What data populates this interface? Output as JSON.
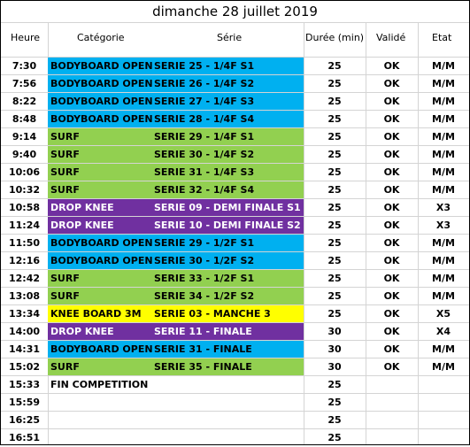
{
  "title": "dimanche 28 juillet 2019",
  "headers": {
    "heure": "Heure",
    "categorie": "Catégorie",
    "serie": "Série",
    "duree": "Durée (min)",
    "valide": "Validé",
    "etat": "Etat"
  },
  "colors": {
    "blue": "#00b0f0",
    "green": "#92d050",
    "purple": "#7030a0",
    "yellow": "#ffff00"
  },
  "rows": [
    {
      "heure": "7:30",
      "categorie": "BODYBOARD OPEN",
      "serie": "SERIE 25 - 1/4F S1",
      "duree": "25",
      "valide": "OK",
      "etat": "M/M",
      "band": "blue"
    },
    {
      "heure": "7:56",
      "categorie": "BODYBOARD OPEN",
      "serie": "SERIE 26 - 1/4F S2",
      "duree": "25",
      "valide": "OK",
      "etat": "M/M",
      "band": "blue"
    },
    {
      "heure": "8:22",
      "categorie": "BODYBOARD OPEN",
      "serie": "SERIE 27 - 1/4F S3",
      "duree": "25",
      "valide": "OK",
      "etat": "M/M",
      "band": "blue"
    },
    {
      "heure": "8:48",
      "categorie": "BODYBOARD OPEN",
      "serie": "SERIE 28 - 1/4F S4",
      "duree": "25",
      "valide": "OK",
      "etat": "M/M",
      "band": "blue"
    },
    {
      "heure": "9:14",
      "categorie": "SURF",
      "serie": "SERIE 29 - 1/4F S1",
      "duree": "25",
      "valide": "OK",
      "etat": "M/M",
      "band": "green"
    },
    {
      "heure": "9:40",
      "categorie": "SURF",
      "serie": "SERIE 30 - 1/4F S2",
      "duree": "25",
      "valide": "OK",
      "etat": "M/M",
      "band": "green"
    },
    {
      "heure": "10:06",
      "categorie": "SURF",
      "serie": "SERIE 31 - 1/4F S3",
      "duree": "25",
      "valide": "OK",
      "etat": "M/M",
      "band": "green"
    },
    {
      "heure": "10:32",
      "categorie": "SURF",
      "serie": "SERIE 32 - 1/4F S4",
      "duree": "25",
      "valide": "OK",
      "etat": "M/M",
      "band": "green"
    },
    {
      "heure": "10:58",
      "categorie": "DROP KNEE",
      "serie": "SERIE 09 - DEMI FINALE S1",
      "duree": "25",
      "valide": "OK",
      "etat": "X3",
      "band": "purple"
    },
    {
      "heure": "11:24",
      "categorie": "DROP KNEE",
      "serie": "SERIE 10 - DEMI FINALE S2",
      "duree": "25",
      "valide": "OK",
      "etat": "X3",
      "band": "purple"
    },
    {
      "heure": "11:50",
      "categorie": "BODYBOARD OPEN",
      "serie": "SERIE 29 - 1/2F S1",
      "duree": "25",
      "valide": "OK",
      "etat": "M/M",
      "band": "blue"
    },
    {
      "heure": "12:16",
      "categorie": "BODYBOARD OPEN",
      "serie": "SERIE 30 - 1/2F S2",
      "duree": "25",
      "valide": "OK",
      "etat": "M/M",
      "band": "blue"
    },
    {
      "heure": "12:42",
      "categorie": "SURF",
      "serie": "SERIE 33 - 1/2F S1",
      "duree": "25",
      "valide": "OK",
      "etat": "M/M",
      "band": "green"
    },
    {
      "heure": "13:08",
      "categorie": "SURF",
      "serie": "SERIE 34 - 1/2F S2",
      "duree": "25",
      "valide": "OK",
      "etat": "M/M",
      "band": "green"
    },
    {
      "heure": "13:34",
      "categorie": "KNEE BOARD 3M",
      "serie": "SERIE 03 - MANCHE 3",
      "duree": "25",
      "valide": "OK",
      "etat": "X5",
      "band": "yellow"
    },
    {
      "heure": "14:00",
      "categorie": "DROP KNEE",
      "serie": "SERIE 11 - FINALE",
      "duree": "30",
      "valide": "OK",
      "etat": "X4",
      "band": "purple"
    },
    {
      "heure": "14:31",
      "categorie": "BODYBOARD OPEN",
      "serie": "SERIE 31 - FINALE",
      "duree": "30",
      "valide": "OK",
      "etat": "M/M",
      "band": "blue"
    },
    {
      "heure": "15:02",
      "categorie": "SURF",
      "serie": "SERIE 35 - FINALE",
      "duree": "30",
      "valide": "OK",
      "etat": "M/M",
      "band": "green"
    },
    {
      "heure": "15:33",
      "categorie": "FIN COMPETITION",
      "serie": "",
      "duree": "25",
      "valide": "",
      "etat": "",
      "band": ""
    },
    {
      "heure": "15:59",
      "categorie": "",
      "serie": "",
      "duree": "25",
      "valide": "",
      "etat": "",
      "band": ""
    },
    {
      "heure": "16:25",
      "categorie": "",
      "serie": "",
      "duree": "25",
      "valide": "",
      "etat": "",
      "band": ""
    },
    {
      "heure": "16:51",
      "categorie": "",
      "serie": "",
      "duree": "25",
      "valide": "",
      "etat": "",
      "band": ""
    }
  ]
}
